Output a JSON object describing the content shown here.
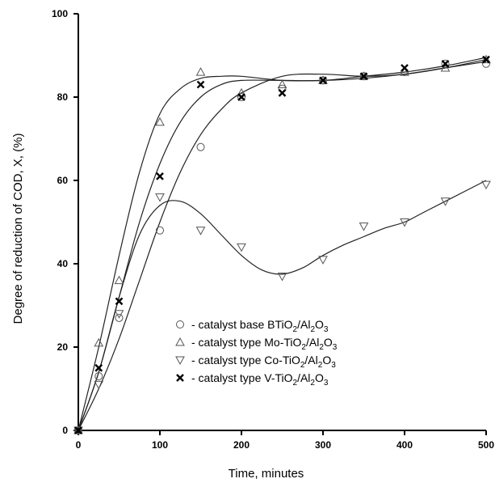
{
  "chart_data": {
    "type": "scatter",
    "xlabel": "Time, minutes",
    "ylabel": "Degree of reduction of COD, X, (%)",
    "xlim": [
      0,
      500
    ],
    "ylim": [
      0,
      100
    ],
    "xticks": [
      0,
      100,
      200,
      300,
      400,
      500
    ],
    "yticks": [
      0,
      20,
      40,
      60,
      80,
      100
    ],
    "xtick_labels": [
      "0",
      "100",
      "200",
      "300",
      "400",
      "500"
    ],
    "ytick_labels": [
      "0",
      "20",
      "40",
      "60",
      "80",
      "100"
    ],
    "grid": false,
    "legend_position": "center-right",
    "series": [
      {
        "name": "- catalyst base BTiO2/Al2O3",
        "legend": {
          "prefix": "- catalyst base BTiO",
          "s1": "2",
          "mid": "/Al",
          "s2": "2",
          "mid2": "O",
          "s3": "3"
        },
        "marker": "circle",
        "x": [
          0,
          25,
          50,
          100,
          150,
          200,
          250,
          300,
          350,
          400,
          450,
          500
        ],
        "y": [
          0,
          13,
          27,
          48,
          68,
          80,
          82,
          84,
          85,
          86,
          88,
          88
        ],
        "curve": [
          [
            0,
            0
          ],
          [
            25,
            10
          ],
          [
            50,
            22
          ],
          [
            75,
            36
          ],
          [
            100,
            50
          ],
          [
            125,
            62
          ],
          [
            150,
            71
          ],
          [
            175,
            77
          ],
          [
            200,
            81
          ],
          [
            250,
            85
          ],
          [
            300,
            85.5
          ],
          [
            350,
            85
          ],
          [
            400,
            85.5
          ],
          [
            450,
            87
          ],
          [
            500,
            89
          ]
        ]
      },
      {
        "name": "- catalyst type Mo-TiO2/Al2O3",
        "legend": {
          "prefix": "- catalyst type Mo-TiO",
          "s1": "2",
          "mid": "/Al",
          "s2": "2",
          "mid2": "O",
          "s3": "3"
        },
        "marker": "triangle-up",
        "x": [
          0,
          25,
          50,
          100,
          150,
          200,
          250,
          300,
          350,
          400,
          450,
          500
        ],
        "y": [
          0,
          21,
          36,
          74,
          86,
          81,
          83,
          84,
          85,
          86,
          87,
          89
        ],
        "curve": [
          [
            0,
            0
          ],
          [
            25,
            20
          ],
          [
            50,
            42
          ],
          [
            75,
            62
          ],
          [
            100,
            76
          ],
          [
            125,
            82
          ],
          [
            150,
            84.5
          ],
          [
            175,
            85
          ],
          [
            200,
            85
          ],
          [
            250,
            84
          ],
          [
            300,
            84
          ],
          [
            350,
            84.5
          ],
          [
            400,
            85.5
          ],
          [
            450,
            87
          ],
          [
            500,
            88.5
          ]
        ]
      },
      {
        "name": "- catalyst type Co-TiO2/Al2O3",
        "legend": {
          "prefix": "- catalyst type Co-TiO",
          "s1": "2",
          "mid": "/Al",
          "s2": "2",
          "mid2": "O",
          "s3": "3"
        },
        "marker": "triangle-down",
        "x": [
          0,
          25,
          50,
          100,
          150,
          200,
          250,
          300,
          350,
          400,
          450,
          500
        ],
        "y": [
          0,
          11,
          28,
          56,
          48,
          44,
          37,
          41,
          49,
          50,
          55,
          59
        ],
        "curve": [
          [
            0,
            0
          ],
          [
            25,
            14
          ],
          [
            50,
            32
          ],
          [
            75,
            47
          ],
          [
            100,
            54
          ],
          [
            125,
            55
          ],
          [
            150,
            52
          ],
          [
            175,
            47
          ],
          [
            200,
            42
          ],
          [
            225,
            38.5
          ],
          [
            250,
            37.5
          ],
          [
            275,
            39
          ],
          [
            300,
            42
          ],
          [
            325,
            44.5
          ],
          [
            350,
            46.5
          ],
          [
            375,
            48.5
          ],
          [
            400,
            50
          ],
          [
            425,
            52.5
          ],
          [
            450,
            55
          ],
          [
            475,
            57.5
          ],
          [
            500,
            60
          ]
        ]
      },
      {
        "name": "- catalyst type V-TiO2/Al2O3",
        "legend": {
          "prefix": "- catalyst type V-TiO",
          "s1": "2",
          "mid": "/Al",
          "s2": "2",
          "mid2": "O",
          "s3": "3"
        },
        "marker": "x",
        "x": [
          0,
          25,
          50,
          100,
          150,
          200,
          250,
          300,
          350,
          400,
          450,
          500
        ],
        "y": [
          0,
          15,
          31,
          61,
          83,
          80,
          81,
          84,
          85,
          87,
          88,
          89
        ],
        "curve": [
          [
            0,
            0
          ],
          [
            25,
            14
          ],
          [
            50,
            32
          ],
          [
            75,
            50
          ],
          [
            100,
            64
          ],
          [
            125,
            74
          ],
          [
            150,
            80
          ],
          [
            175,
            83
          ],
          [
            200,
            84
          ],
          [
            250,
            84
          ],
          [
            300,
            84
          ],
          [
            350,
            85
          ],
          [
            400,
            86
          ],
          [
            450,
            87.5
          ],
          [
            500,
            89.5
          ]
        ]
      }
    ]
  }
}
